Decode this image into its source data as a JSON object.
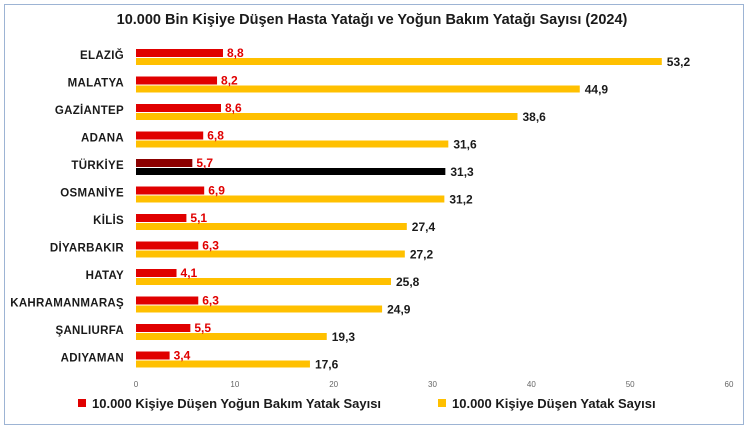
{
  "chart_data": {
    "type": "bar",
    "orientation": "horizontal",
    "title": "10.000 Bin Kişiye Düşen Hasta Yatağı ve Yoğun Bakım Yatağı Sayısı (2024)",
    "categories": [
      "ELAZIĞ",
      "MALATYA",
      "GAZİANTEP",
      "ADANA",
      "TÜRKİYE",
      "OSMANİYE",
      "KİLİS",
      "DİYARBAKIR",
      "HATAY",
      "KAHRAMANMARAŞ",
      "ŞANLIURFA",
      "ADIYAMAN"
    ],
    "series": [
      {
        "name": "10.000 Kişiye Düşen Yoğun Bakım Yatak Sayısı",
        "color": "#e00000",
        "highlight_color": "#8b0000",
        "values": [
          8.8,
          8.2,
          8.6,
          6.8,
          5.7,
          6.9,
          5.1,
          6.3,
          4.1,
          6.3,
          5.5,
          3.4
        ],
        "labels": [
          "8,8",
          "8,2",
          "8,6",
          "6,8",
          "5,7",
          "6,9",
          "5,1",
          "6,3",
          "4,1",
          "6,3",
          "5,5",
          "3,4"
        ]
      },
      {
        "name": "10.000 Kişiye Düşen Yatak Sayısı",
        "color": "#ffc000",
        "highlight_color": "#000000",
        "values": [
          53.2,
          44.9,
          38.6,
          31.6,
          31.3,
          31.2,
          27.4,
          27.2,
          25.8,
          24.9,
          19.3,
          17.6
        ],
        "labels": [
          "53,2",
          "44,9",
          "38,6",
          "31,6",
          "31,3",
          "31,2",
          "27,4",
          "27,2",
          "25,8",
          "24,9",
          "19,3",
          "17,6"
        ]
      }
    ],
    "highlight_category": "TÜRKİYE",
    "xlim": [
      0,
      60
    ],
    "xticks": [
      "0",
      "10",
      "20",
      "30",
      "40",
      "50",
      "60"
    ],
    "grid": false,
    "legend_position": "bottom"
  }
}
